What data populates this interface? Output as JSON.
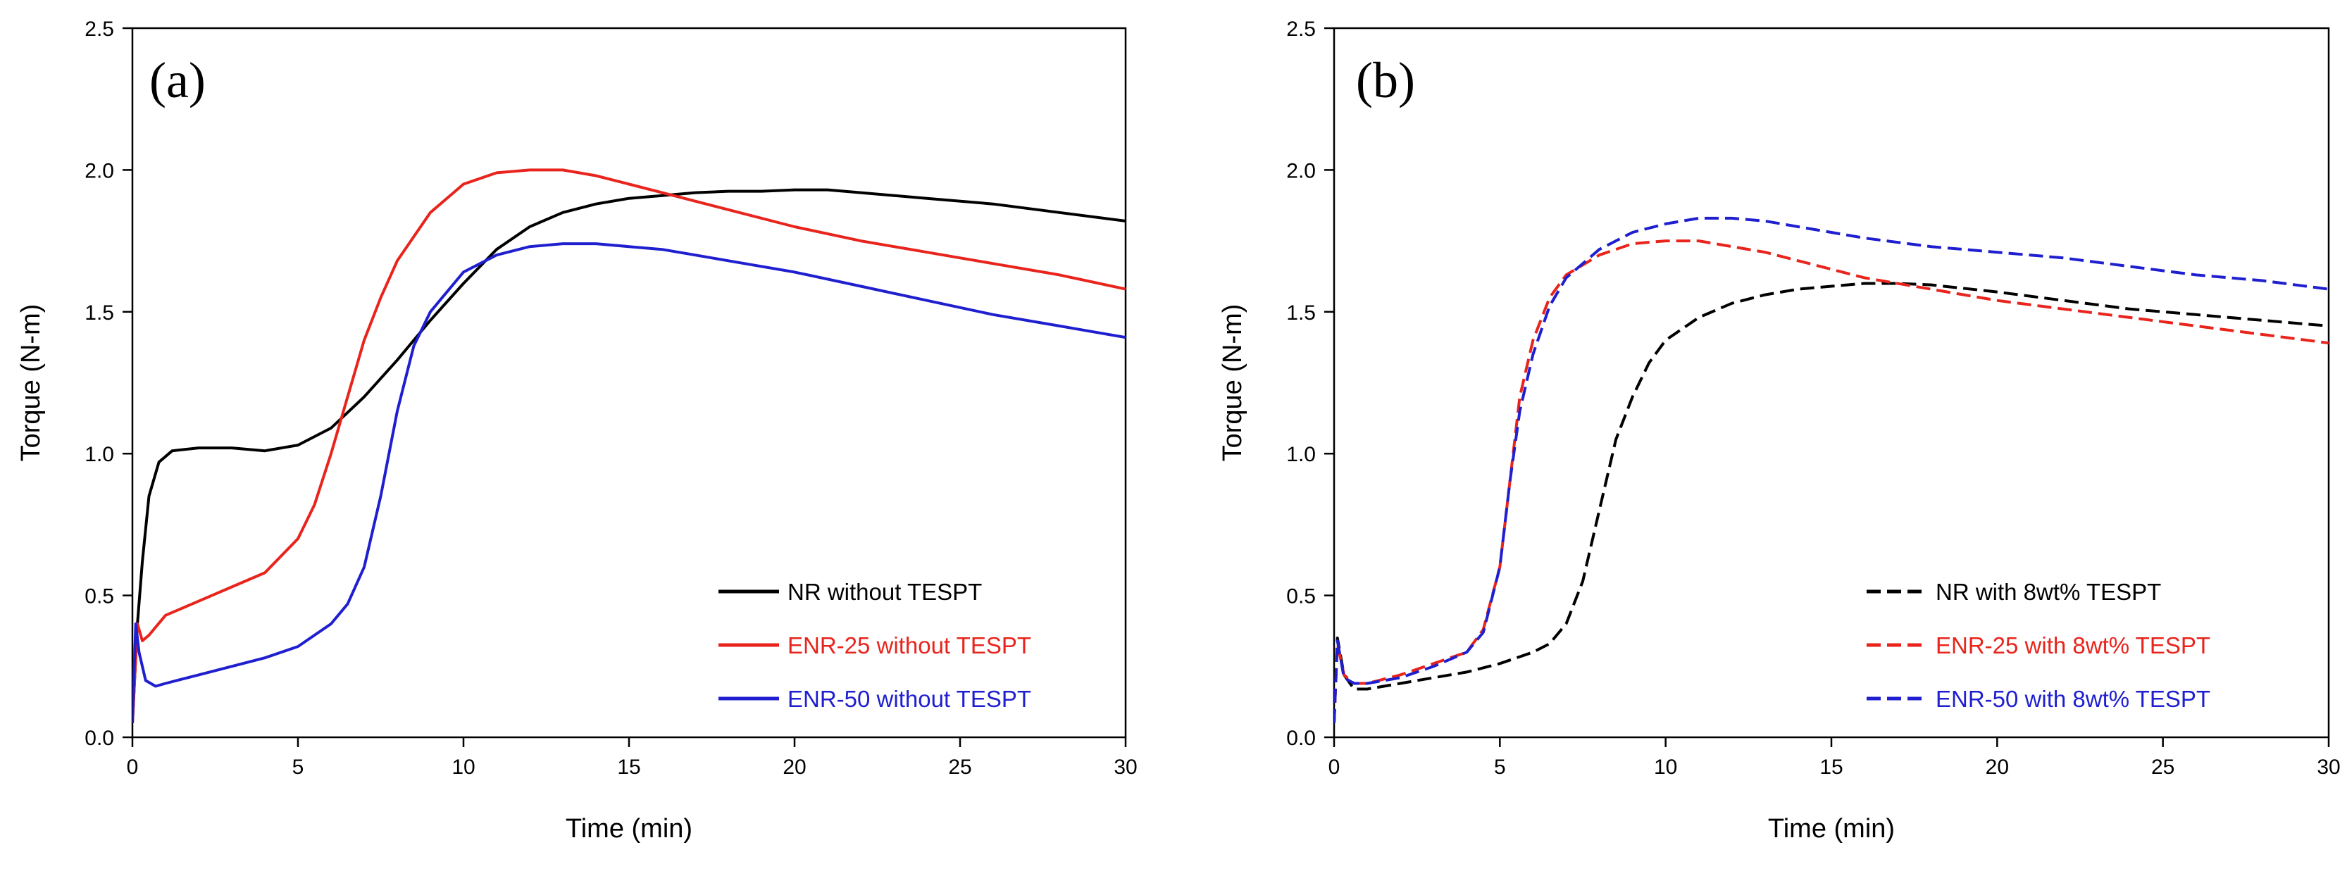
{
  "chart_data": [
    {
      "type": "line",
      "panel_label": "(a)",
      "xlabel": "Time (min)",
      "ylabel": "Torque (N-m)",
      "xlim": [
        0,
        30
      ],
      "ylim": [
        0,
        2.5
      ],
      "xticks": [
        "0",
        "5",
        "10",
        "15",
        "20",
        "25",
        "30"
      ],
      "yticks": [
        "0.0",
        "0.5",
        "1.0",
        "1.5",
        "2.0",
        "2.5"
      ],
      "legend_position": "bottom-right",
      "series": [
        {
          "name": "NR without TESPT",
          "color": "#000000",
          "dash": "solid",
          "points": [
            [
              0,
              0.05
            ],
            [
              0.15,
              0.4
            ],
            [
              0.3,
              0.62
            ],
            [
              0.5,
              0.85
            ],
            [
              0.8,
              0.97
            ],
            [
              1.2,
              1.01
            ],
            [
              2,
              1.02
            ],
            [
              3,
              1.02
            ],
            [
              4,
              1.01
            ],
            [
              5,
              1.03
            ],
            [
              6,
              1.09
            ],
            [
              7,
              1.2
            ],
            [
              8,
              1.33
            ],
            [
              9,
              1.47
            ],
            [
              10,
              1.6
            ],
            [
              11,
              1.72
            ],
            [
              12,
              1.8
            ],
            [
              13,
              1.85
            ],
            [
              14,
              1.88
            ],
            [
              15,
              1.9
            ],
            [
              16,
              1.91
            ],
            [
              17,
              1.92
            ],
            [
              18,
              1.925
            ],
            [
              19,
              1.925
            ],
            [
              20,
              1.93
            ],
            [
              21,
              1.93
            ],
            [
              22,
              1.92
            ],
            [
              24,
              1.9
            ],
            [
              26,
              1.88
            ],
            [
              28,
              1.85
            ],
            [
              30,
              1.82
            ]
          ]
        },
        {
          "name": "ENR-25 without TESPT",
          "color": "#e8241c",
          "dash": "solid",
          "points": [
            [
              0,
              0.05
            ],
            [
              0.15,
              0.4
            ],
            [
              0.3,
              0.34
            ],
            [
              0.5,
              0.36
            ],
            [
              1,
              0.43
            ],
            [
              2,
              0.48
            ],
            [
              3,
              0.53
            ],
            [
              4,
              0.58
            ],
            [
              5,
              0.7
            ],
            [
              5.5,
              0.82
            ],
            [
              6,
              1.0
            ],
            [
              6.5,
              1.2
            ],
            [
              7,
              1.4
            ],
            [
              7.5,
              1.55
            ],
            [
              8,
              1.68
            ],
            [
              9,
              1.85
            ],
            [
              10,
              1.95
            ],
            [
              11,
              1.99
            ],
            [
              12,
              2.0
            ],
            [
              13,
              2.0
            ],
            [
              14,
              1.98
            ],
            [
              15,
              1.95
            ],
            [
              16,
              1.92
            ],
            [
              18,
              1.86
            ],
            [
              20,
              1.8
            ],
            [
              22,
              1.75
            ],
            [
              24,
              1.71
            ],
            [
              26,
              1.67
            ],
            [
              28,
              1.63
            ],
            [
              30,
              1.58
            ]
          ]
        },
        {
          "name": "ENR-50 without TESPT",
          "color": "#1f1fd0",
          "dash": "solid",
          "points": [
            [
              0,
              0.05
            ],
            [
              0.1,
              0.4
            ],
            [
              0.2,
              0.3
            ],
            [
              0.4,
              0.2
            ],
            [
              0.7,
              0.18
            ],
            [
              1,
              0.19
            ],
            [
              2,
              0.22
            ],
            [
              3,
              0.25
            ],
            [
              4,
              0.28
            ],
            [
              5,
              0.32
            ],
            [
              6,
              0.4
            ],
            [
              6.5,
              0.47
            ],
            [
              7,
              0.6
            ],
            [
              7.5,
              0.85
            ],
            [
              8,
              1.15
            ],
            [
              8.5,
              1.38
            ],
            [
              9,
              1.5
            ],
            [
              10,
              1.64
            ],
            [
              11,
              1.7
            ],
            [
              12,
              1.73
            ],
            [
              13,
              1.74
            ],
            [
              14,
              1.74
            ],
            [
              15,
              1.73
            ],
            [
              16,
              1.72
            ],
            [
              17,
              1.7
            ],
            [
              18,
              1.68
            ],
            [
              20,
              1.64
            ],
            [
              22,
              1.59
            ],
            [
              24,
              1.54
            ],
            [
              26,
              1.49
            ],
            [
              28,
              1.45
            ],
            [
              30,
              1.41
            ]
          ]
        }
      ]
    },
    {
      "type": "line",
      "panel_label": "(b)",
      "xlabel": "Time (min)",
      "ylabel": "Torque (N-m)",
      "xlim": [
        0,
        30
      ],
      "ylim": [
        0,
        2.5
      ],
      "xticks": [
        "0",
        "5",
        "10",
        "15",
        "20",
        "25",
        "30"
      ],
      "yticks": [
        "0.0",
        "0.5",
        "1.0",
        "1.5",
        "2.0",
        "2.5"
      ],
      "legend_position": "bottom-right",
      "series": [
        {
          "name": "NR with 8wt% TESPT",
          "color": "#000000",
          "dash": "dashed",
          "points": [
            [
              0,
              0.05
            ],
            [
              0.1,
              0.35
            ],
            [
              0.3,
              0.22
            ],
            [
              0.6,
              0.17
            ],
            [
              1,
              0.17
            ],
            [
              2,
              0.19
            ],
            [
              3,
              0.21
            ],
            [
              4,
              0.23
            ],
            [
              5,
              0.26
            ],
            [
              6,
              0.3
            ],
            [
              6.5,
              0.33
            ],
            [
              7,
              0.4
            ],
            [
              7.5,
              0.55
            ],
            [
              8,
              0.8
            ],
            [
              8.5,
              1.05
            ],
            [
              9,
              1.2
            ],
            [
              9.5,
              1.32
            ],
            [
              10,
              1.4
            ],
            [
              11,
              1.48
            ],
            [
              12,
              1.53
            ],
            [
              13,
              1.56
            ],
            [
              14,
              1.58
            ],
            [
              15,
              1.59
            ],
            [
              16,
              1.6
            ],
            [
              17,
              1.6
            ],
            [
              18,
              1.595
            ],
            [
              20,
              1.57
            ],
            [
              22,
              1.54
            ],
            [
              24,
              1.51
            ],
            [
              26,
              1.49
            ],
            [
              28,
              1.47
            ],
            [
              30,
              1.45
            ]
          ]
        },
        {
          "name": "ENR-25 with 8wt% TESPT",
          "color": "#e8241c",
          "dash": "dashed",
          "points": [
            [
              0,
              0.05
            ],
            [
              0.1,
              0.33
            ],
            [
              0.3,
              0.22
            ],
            [
              0.6,
              0.19
            ],
            [
              1,
              0.19
            ],
            [
              2,
              0.22
            ],
            [
              3,
              0.26
            ],
            [
              4,
              0.3
            ],
            [
              4.5,
              0.38
            ],
            [
              5,
              0.6
            ],
            [
              5.3,
              0.9
            ],
            [
              5.6,
              1.2
            ],
            [
              6,
              1.4
            ],
            [
              6.5,
              1.55
            ],
            [
              7,
              1.63
            ],
            [
              8,
              1.7
            ],
            [
              9,
              1.74
            ],
            [
              10,
              1.75
            ],
            [
              11,
              1.75
            ],
            [
              12,
              1.73
            ],
            [
              13,
              1.71
            ],
            [
              14,
              1.68
            ],
            [
              15,
              1.65
            ],
            [
              16,
              1.62
            ],
            [
              18,
              1.58
            ],
            [
              20,
              1.54
            ],
            [
              22,
              1.51
            ],
            [
              24,
              1.48
            ],
            [
              26,
              1.45
            ],
            [
              28,
              1.42
            ],
            [
              30,
              1.39
            ]
          ]
        },
        {
          "name": "ENR-50 with 8wt% TESPT",
          "color": "#1f1fd0",
          "dash": "dashed",
          "points": [
            [
              0,
              0.05
            ],
            [
              0.1,
              0.34
            ],
            [
              0.3,
              0.21
            ],
            [
              0.6,
              0.19
            ],
            [
              1,
              0.19
            ],
            [
              2,
              0.21
            ],
            [
              3,
              0.25
            ],
            [
              4,
              0.3
            ],
            [
              4.5,
              0.37
            ],
            [
              5,
              0.6
            ],
            [
              5.3,
              0.9
            ],
            [
              5.6,
              1.15
            ],
            [
              6,
              1.35
            ],
            [
              6.5,
              1.52
            ],
            [
              7,
              1.62
            ],
            [
              8,
              1.72
            ],
            [
              9,
              1.78
            ],
            [
              10,
              1.81
            ],
            [
              11,
              1.83
            ],
            [
              12,
              1.83
            ],
            [
              13,
              1.82
            ],
            [
              14,
              1.8
            ],
            [
              15,
              1.78
            ],
            [
              16,
              1.76
            ],
            [
              18,
              1.73
            ],
            [
              20,
              1.71
            ],
            [
              22,
              1.69
            ],
            [
              24,
              1.66
            ],
            [
              26,
              1.63
            ],
            [
              28,
              1.61
            ],
            [
              30,
              1.58
            ]
          ]
        }
      ]
    }
  ]
}
